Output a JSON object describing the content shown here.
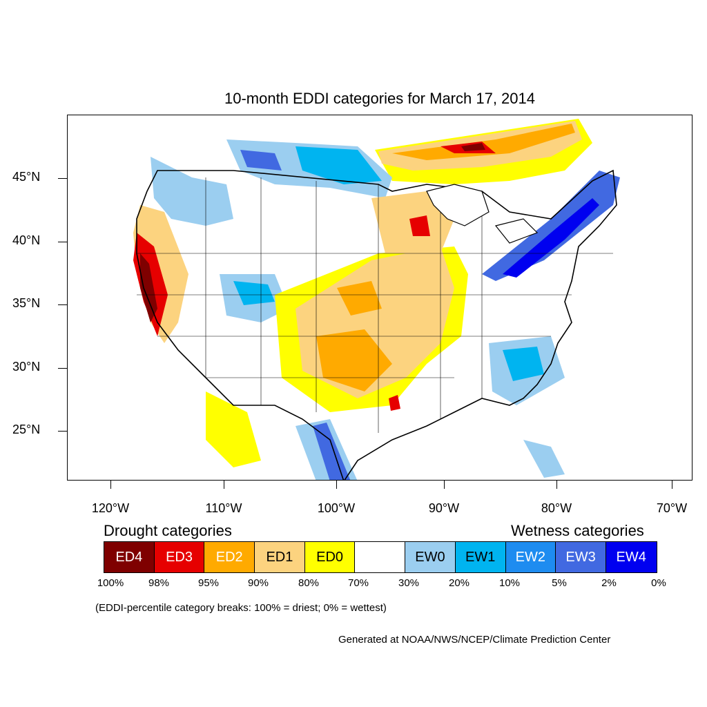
{
  "title": "10-month EDDI categories for March 17, 2014",
  "lat_labels": [
    "45°N",
    "40°N",
    "35°N",
    "30°N",
    "25°N"
  ],
  "lon_labels": [
    "120°W",
    "110°W",
    "100°W",
    "90°W",
    "80°W",
    "70°W"
  ],
  "drought_heading": "Drought categories",
  "wetness_heading": "Wetness categories",
  "categories": [
    {
      "label": "ED4",
      "color": "#7f0000",
      "text_color": "#ffffff"
    },
    {
      "label": "ED3",
      "color": "#e60000",
      "text_color": "#ffffff"
    },
    {
      "label": "ED2",
      "color": "#ffaa00",
      "text_color": "#ffffff"
    },
    {
      "label": "ED1",
      "color": "#fcd37f",
      "text_color": "#000000"
    },
    {
      "label": "ED0",
      "color": "#ffff00",
      "text_color": "#000000"
    },
    {
      "label": "",
      "color": "#ffffff",
      "text_color": "#000000"
    },
    {
      "label": "EW0",
      "color": "#9bcef0",
      "text_color": "#000000"
    },
    {
      "label": "EW1",
      "color": "#00b4f0",
      "text_color": "#000000"
    },
    {
      "label": "EW2",
      "color": "#1e8cf0",
      "text_color": "#ffffff"
    },
    {
      "label": "EW3",
      "color": "#4169e1",
      "text_color": "#ffffff"
    },
    {
      "label": "EW4",
      "color": "#0000f0",
      "text_color": "#ffffff"
    }
  ],
  "percent_breaks": [
    "100%",
    "98%",
    "95%",
    "90%",
    "80%",
    "70%",
    "30%",
    "20%",
    "10%",
    "5%",
    "2%",
    "0%"
  ],
  "note": "(EDDI-percentile category breaks: 100% = driest; 0% = wettest)",
  "credit": "Generated at NOAA/NWS/NCEP/Climate Prediction Center"
}
